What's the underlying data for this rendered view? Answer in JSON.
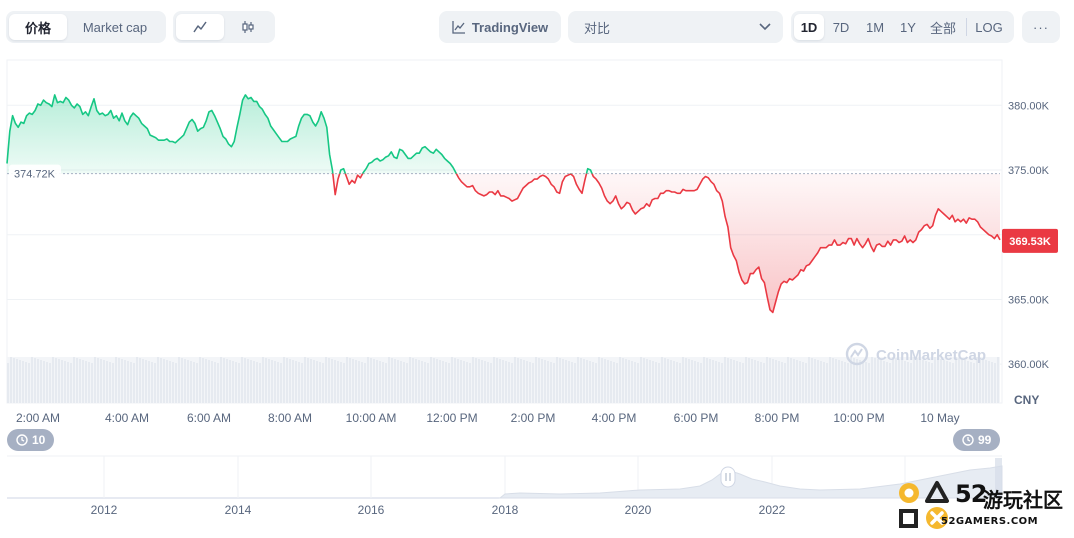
{
  "toolbar": {
    "metric_tabs": [
      "价格",
      "Market cap"
    ],
    "tradingview_label": "TradingView",
    "compare_label": "对比",
    "ranges": [
      "1D",
      "7D",
      "1M",
      "1Y",
      "全部"
    ],
    "log_label": "LOG",
    "more_label": "···"
  },
  "chart_data": {
    "type": "line",
    "x_labels": [
      "2:00 AM",
      "4:00 AM",
      "6:00 AM",
      "8:00 AM",
      "10:00 AM",
      "12:00 PM",
      "2:00 PM",
      "4:00 PM",
      "6:00 PM",
      "8:00 PM",
      "10:00 PM",
      "10 May"
    ],
    "y_ticks": [
      "380.00K",
      "375.00K",
      "370.00K",
      "365.00K",
      "360.00K"
    ],
    "ylim": [
      357000,
      383500
    ],
    "currency_label": "CNY",
    "baseline_value": 374720,
    "baseline_label": "374.72K",
    "current_label": "369.53K",
    "current_value": 369530,
    "up_color": "#16c784",
    "down_color": "#ea3943",
    "watermark": "CoinMarketCap",
    "series": [
      {
        "values": [
          375500,
          378000,
          379200,
          378600,
          378300,
          378700,
          378600,
          379200,
          379400,
          379300,
          379600,
          380100,
          380000,
          380400,
          380200,
          380100,
          379900,
          380800,
          380200,
          380300,
          380200,
          380600,
          380400,
          380000,
          379800,
          380100,
          379900,
          379300,
          379500,
          379200,
          379900,
          380500,
          379600,
          379300,
          379400,
          379200,
          379300,
          379600,
          379000,
          379200,
          378800,
          379400,
          378800,
          378500,
          379100,
          379400,
          379200,
          379000,
          378600,
          378400,
          378200,
          377700,
          377600,
          377500,
          377300,
          377300,
          377300,
          377400,
          377200,
          377200,
          377100,
          377300,
          377500,
          377700,
          378200,
          378700,
          378900,
          378600,
          378000,
          378200,
          378300,
          378800,
          379500,
          379600,
          379200,
          378700,
          378200,
          377600,
          377400,
          377000,
          376800,
          377200,
          378300,
          379300,
          380400,
          380800,
          380500,
          380600,
          380300,
          380300,
          379900,
          379700,
          379300,
          379000,
          378400,
          378100,
          377800,
          377500,
          377200,
          377200,
          377200,
          377400,
          377500,
          377600,
          378400,
          379000,
          379300,
          379300,
          379200,
          378700,
          378400,
          378800,
          379500,
          379000,
          378300,
          376200,
          375000,
          373100,
          374300,
          375000,
          375100,
          374500,
          373900,
          374200,
          374000,
          374600,
          374400,
          374800,
          375100,
          375500,
          375600,
          375800,
          375900,
          375700,
          375800,
          376000,
          376100,
          376400,
          376000,
          375900,
          376600,
          376500,
          376200,
          375900,
          375900,
          376100,
          376300,
          376300,
          376700,
          376800,
          376600,
          376400,
          376300,
          376600,
          376400,
          376200,
          375900,
          375700,
          375500,
          375200,
          374800,
          374400,
          374100,
          373900,
          373700,
          373700,
          373800,
          373400,
          373200,
          373100,
          373000,
          373100,
          373300,
          373300,
          373100,
          373400,
          373000,
          373000,
          372900,
          372800,
          372600,
          372700,
          372800,
          373200,
          373600,
          373800,
          374000,
          374100,
          374300,
          374300,
          374500,
          374600,
          374500,
          374300,
          373900,
          373700,
          373300,
          373200,
          374100,
          374500,
          374600,
          374700,
          374500,
          373900,
          373500,
          373200,
          374200,
          375100,
          375000,
          374500,
          374300,
          374000,
          373600,
          373000,
          372600,
          372400,
          372600,
          373000,
          372400,
          372000,
          372200,
          372500,
          372400,
          371900,
          371600,
          371800,
          372000,
          372100,
          372400,
          372200,
          372700,
          372800,
          372800,
          373200,
          373200,
          373400,
          373400,
          373300,
          373300,
          373200,
          373200,
          373500,
          373400,
          373400,
          373400,
          373400,
          373500,
          373900,
          374300,
          374500,
          374400,
          374100,
          373900,
          373400,
          373200,
          372600,
          371400,
          370600,
          369000,
          368400,
          368000,
          367100,
          366500,
          366200,
          366300,
          367000,
          367000,
          367300,
          367500,
          366600,
          366300,
          365200,
          364200,
          364000,
          364800,
          365600,
          366200,
          366400,
          366300,
          366600,
          366500,
          366700,
          366900,
          367300,
          367200,
          367600,
          367700,
          368000,
          368300,
          368600,
          369000,
          369000,
          369000,
          369200,
          369200,
          369600,
          369200,
          369200,
          369400,
          369300,
          369700,
          369700,
          369200,
          369700,
          369300,
          369000,
          369300,
          369700,
          369100,
          368700,
          369200,
          369300,
          369100,
          369100,
          369500,
          369200,
          369600,
          369600,
          369400,
          369500,
          369900,
          369400,
          369600,
          369400,
          369600,
          370200,
          370400,
          370700,
          370800,
          370500,
          370700,
          371500,
          372000,
          371800,
          371600,
          371400,
          371200,
          371500,
          371000,
          371200,
          371000,
          371200,
          370900,
          371300,
          371200,
          371200,
          371000,
          370600,
          370400,
          370200,
          370000,
          369900,
          369700,
          370000,
          369600
        ]
      }
    ]
  }
}
